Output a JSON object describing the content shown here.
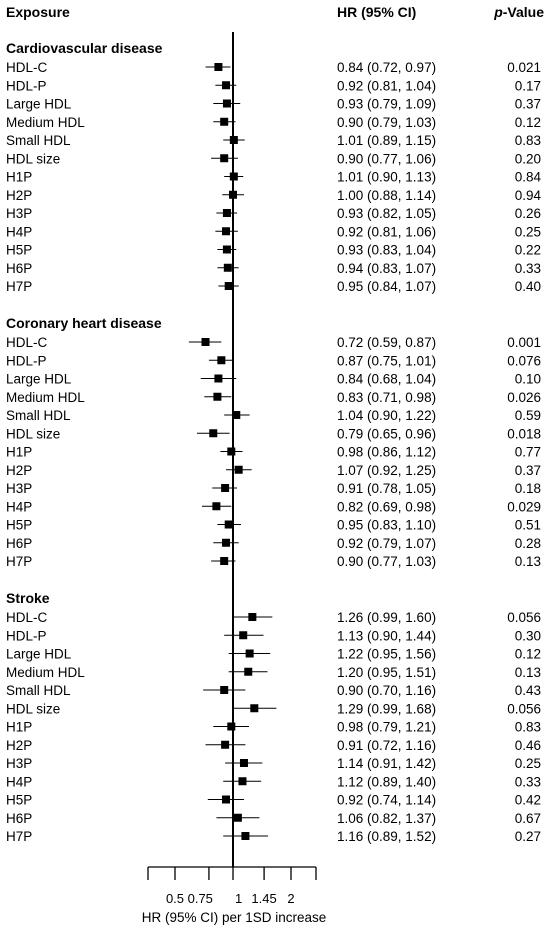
{
  "chart_data": {
    "type": "forest",
    "headers": {
      "exposure": "Exposure",
      "hr": "HR (95% CI)",
      "p_italic": "p",
      "p_rest": "-Value"
    },
    "xlabel": "HR (95% CI) per 1SD increase",
    "reference_line": 1,
    "xscale": "log",
    "xlim": [
      0.42,
      2.3
    ],
    "xticks": [
      {
        "value": 0.5,
        "label": "0.5"
      },
      {
        "value": 0.75,
        "label": "0.75"
      },
      {
        "value": 1,
        "label": "1"
      },
      {
        "value": 1.45,
        "label": "1.45"
      },
      {
        "value": 2,
        "label": "2"
      }
    ],
    "groups": [
      {
        "name": "Cardiovascular disease",
        "rows": [
          {
            "label": "HDL-C",
            "hr": 0.84,
            "lo": 0.72,
            "hi": 0.97,
            "hr_text": "0.84 (0.72, 0.97)",
            "p": "0.021"
          },
          {
            "label": "HDL-P",
            "hr": 0.92,
            "lo": 0.81,
            "hi": 1.04,
            "hr_text": "0.92 (0.81, 1.04)",
            "p": "0.17"
          },
          {
            "label": "Large HDL",
            "hr": 0.93,
            "lo": 0.79,
            "hi": 1.09,
            "hr_text": "0.93 (0.79, 1.09)",
            "p": "0.37"
          },
          {
            "label": "Medium HDL",
            "hr": 0.9,
            "lo": 0.79,
            "hi": 1.03,
            "hr_text": "0.90 (0.79, 1.03)",
            "p": "0.12"
          },
          {
            "label": "Small HDL",
            "hr": 1.01,
            "lo": 0.89,
            "hi": 1.15,
            "hr_text": "1.01 (0.89, 1.15)",
            "p": "0.83"
          },
          {
            "label": "HDL size",
            "hr": 0.9,
            "lo": 0.77,
            "hi": 1.06,
            "hr_text": "0.90 (0.77, 1.06)",
            "p": "0.20"
          },
          {
            "label": "H1P",
            "hr": 1.01,
            "lo": 0.9,
            "hi": 1.13,
            "hr_text": "1.01 (0.90, 1.13)",
            "p": "0.84"
          },
          {
            "label": "H2P",
            "hr": 1.0,
            "lo": 0.88,
            "hi": 1.14,
            "hr_text": "1.00 (0.88, 1.14)",
            "p": "0.94"
          },
          {
            "label": "H3P",
            "hr": 0.93,
            "lo": 0.82,
            "hi": 1.05,
            "hr_text": "0.93 (0.82, 1.05)",
            "p": "0.26"
          },
          {
            "label": "H4P",
            "hr": 0.92,
            "lo": 0.81,
            "hi": 1.06,
            "hr_text": "0.92 (0.81, 1.06)",
            "p": "0.25"
          },
          {
            "label": "H5P",
            "hr": 0.93,
            "lo": 0.83,
            "hi": 1.04,
            "hr_text": "0.93 (0.83, 1.04)",
            "p": "0.22"
          },
          {
            "label": "H6P",
            "hr": 0.94,
            "lo": 0.83,
            "hi": 1.07,
            "hr_text": "0.94 (0.83, 1.07)",
            "p": "0.33"
          },
          {
            "label": "H7P",
            "hr": 0.95,
            "lo": 0.84,
            "hi": 1.07,
            "hr_text": "0.95 (0.84, 1.07)",
            "p": "0.40"
          }
        ]
      },
      {
        "name": "Coronary heart disease",
        "rows": [
          {
            "label": "HDL-C",
            "hr": 0.72,
            "lo": 0.59,
            "hi": 0.87,
            "hr_text": "0.72 (0.59, 0.87)",
            "p": "0.001"
          },
          {
            "label": "HDL-P",
            "hr": 0.87,
            "lo": 0.75,
            "hi": 1.01,
            "hr_text": "0.87 (0.75, 1.01)",
            "p": "0.076"
          },
          {
            "label": "Large HDL",
            "hr": 0.84,
            "lo": 0.68,
            "hi": 1.04,
            "hr_text": "0.84 (0.68, 1.04)",
            "p": "0.10"
          },
          {
            "label": "Medium HDL",
            "hr": 0.83,
            "lo": 0.71,
            "hi": 0.98,
            "hr_text": "0.83 (0.71, 0.98)",
            "p": "0.026"
          },
          {
            "label": "Small HDL",
            "hr": 1.04,
            "lo": 0.9,
            "hi": 1.22,
            "hr_text": "1.04 (0.90, 1.22)",
            "p": "0.59"
          },
          {
            "label": "HDL size",
            "hr": 0.79,
            "lo": 0.65,
            "hi": 0.96,
            "hr_text": "0.79 (0.65, 0.96)",
            "p": "0.018"
          },
          {
            "label": "H1P",
            "hr": 0.98,
            "lo": 0.86,
            "hi": 1.12,
            "hr_text": "0.98 (0.86, 1.12)",
            "p": "0.77"
          },
          {
            "label": "H2P",
            "hr": 1.07,
            "lo": 0.92,
            "hi": 1.25,
            "hr_text": "1.07 (0.92, 1.25)",
            "p": "0.37"
          },
          {
            "label": "H3P",
            "hr": 0.91,
            "lo": 0.78,
            "hi": 1.05,
            "hr_text": "0.91 (0.78, 1.05)",
            "p": "0.18"
          },
          {
            "label": "H4P",
            "hr": 0.82,
            "lo": 0.69,
            "hi": 0.98,
            "hr_text": "0.82 (0.69, 0.98)",
            "p": "0.029"
          },
          {
            "label": "H5P",
            "hr": 0.95,
            "lo": 0.83,
            "hi": 1.1,
            "hr_text": "0.95 (0.83, 1.10)",
            "p": "0.51"
          },
          {
            "label": "H6P",
            "hr": 0.92,
            "lo": 0.79,
            "hi": 1.07,
            "hr_text": "0.92 (0.79, 1.07)",
            "p": "0.28"
          },
          {
            "label": "H7P",
            "hr": 0.9,
            "lo": 0.77,
            "hi": 1.03,
            "hr_text": "0.90 (0.77, 1.03)",
            "p": "0.13"
          }
        ]
      },
      {
        "name": "Stroke",
        "rows": [
          {
            "label": "HDL-C",
            "hr": 1.26,
            "lo": 0.99,
            "hi": 1.6,
            "hr_text": "1.26 (0.99, 1.60)",
            "p": "0.056"
          },
          {
            "label": "HDL-P",
            "hr": 1.13,
            "lo": 0.9,
            "hi": 1.44,
            "hr_text": "1.13 (0.90, 1.44)",
            "p": "0.30"
          },
          {
            "label": "Large HDL",
            "hr": 1.22,
            "lo": 0.95,
            "hi": 1.56,
            "hr_text": "1.22 (0.95, 1.56)",
            "p": "0.12"
          },
          {
            "label": "Medium HDL",
            "hr": 1.2,
            "lo": 0.95,
            "hi": 1.51,
            "hr_text": "1.20 (0.95, 1.51)",
            "p": "0.13"
          },
          {
            "label": "Small HDL",
            "hr": 0.9,
            "lo": 0.7,
            "hi": 1.16,
            "hr_text": "0.90 (0.70, 1.16)",
            "p": "0.43"
          },
          {
            "label": "HDL size",
            "hr": 1.29,
            "lo": 0.99,
            "hi": 1.68,
            "hr_text": "1.29 (0.99, 1.68)",
            "p": "0.056"
          },
          {
            "label": "H1P",
            "hr": 0.98,
            "lo": 0.79,
            "hi": 1.21,
            "hr_text": "0.98 (0.79, 1.21)",
            "p": "0.83"
          },
          {
            "label": "H2P",
            "hr": 0.91,
            "lo": 0.72,
            "hi": 1.16,
            "hr_text": "0.91 (0.72, 1.16)",
            "p": "0.46"
          },
          {
            "label": "H3P",
            "hr": 1.14,
            "lo": 0.91,
            "hi": 1.42,
            "hr_text": "1.14 (0.91, 1.42)",
            "p": "0.25"
          },
          {
            "label": "H4P",
            "hr": 1.12,
            "lo": 0.89,
            "hi": 1.4,
            "hr_text": "1.12 (0.89, 1.40)",
            "p": "0.33"
          },
          {
            "label": "H5P",
            "hr": 0.92,
            "lo": 0.74,
            "hi": 1.14,
            "hr_text": "0.92 (0.74, 1.14)",
            "p": "0.42"
          },
          {
            "label": "H6P",
            "hr": 1.06,
            "lo": 0.82,
            "hi": 1.37,
            "hr_text": "1.06 (0.82, 1.37)",
            "p": "0.67"
          },
          {
            "label": "H7P",
            "hr": 1.16,
            "lo": 0.89,
            "hi": 1.52,
            "hr_text": "1.16 (0.89, 1.52)",
            "p": "0.27"
          }
        ]
      }
    ]
  },
  "colors": {
    "ink": "#000000",
    "background": "#ffffff"
  }
}
